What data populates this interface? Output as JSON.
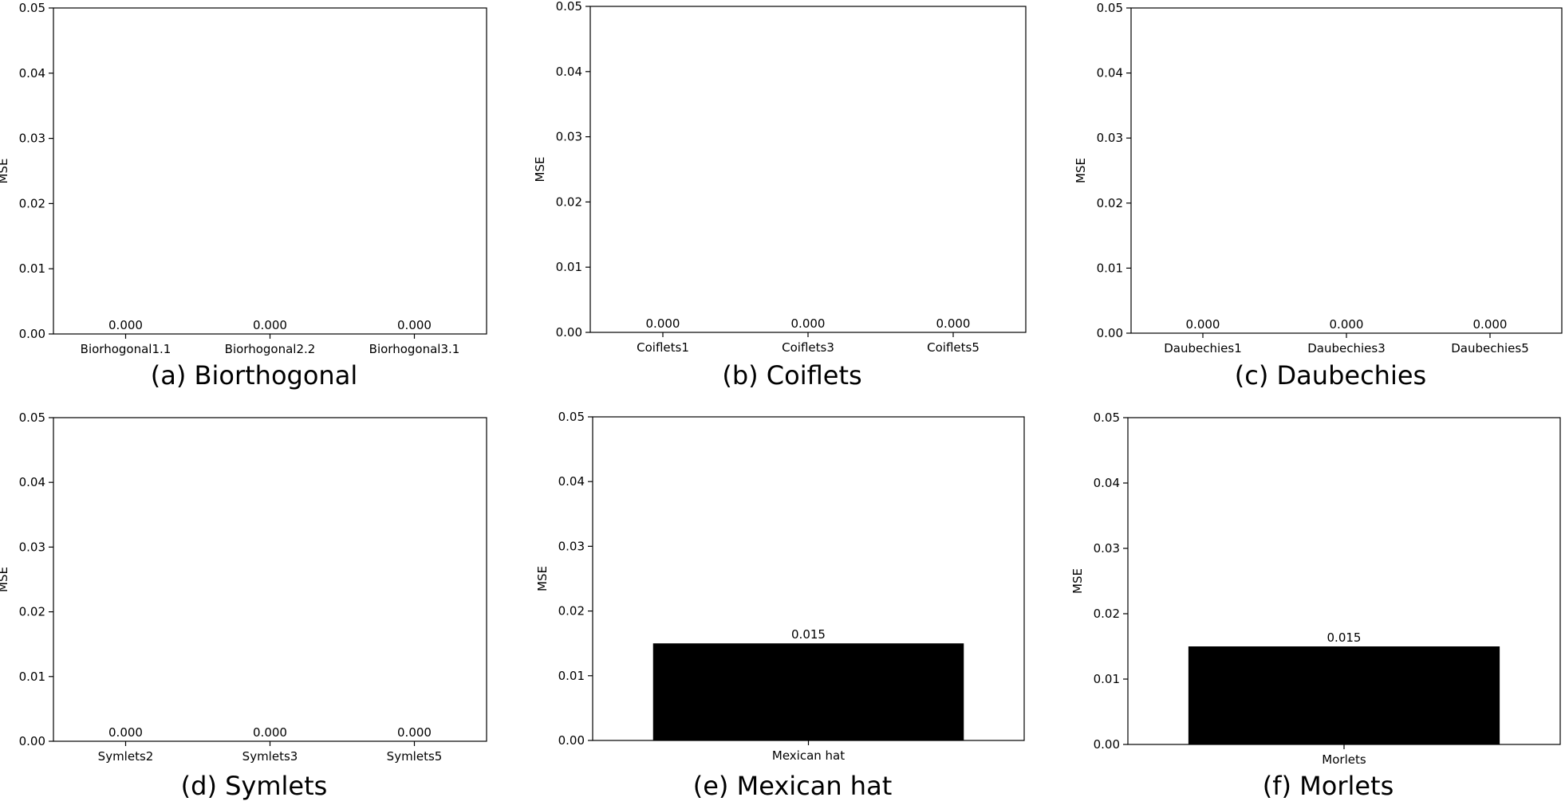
{
  "chart_data": [
    {
      "type": "bar",
      "categories": [
        "Biorhogonal1.1",
        "Biorhogonal2.2",
        "Biorhogonal3.1"
      ],
      "values": [
        0.0,
        0.0,
        0.0
      ],
      "data_labels": [
        "0.000",
        "0.000",
        "0.000"
      ],
      "ylabel": "MSE",
      "xlabel": "",
      "ylim": [
        0,
        0.05
      ],
      "yticks": [
        "0.00",
        "0.01",
        "0.02",
        "0.03",
        "0.04",
        "0.05"
      ],
      "caption": "(a) Biorthogonal",
      "bar_color": "#000000",
      "grid": false
    },
    {
      "type": "bar",
      "categories": [
        "Coiflets1",
        "Coiflets3",
        "Coiflets5"
      ],
      "values": [
        0.0,
        0.0,
        0.0
      ],
      "data_labels": [
        "0.000",
        "0.000",
        "0.000"
      ],
      "ylabel": "MSE",
      "xlabel": "",
      "ylim": [
        0,
        0.05
      ],
      "yticks": [
        "0.00",
        "0.01",
        "0.02",
        "0.03",
        "0.04",
        "0.05"
      ],
      "caption": "(b) Coiflets",
      "bar_color": "#000000",
      "grid": false
    },
    {
      "type": "bar",
      "categories": [
        "Daubechies1",
        "Daubechies3",
        "Daubechies5"
      ],
      "values": [
        0.0,
        0.0,
        0.0
      ],
      "data_labels": [
        "0.000",
        "0.000",
        "0.000"
      ],
      "ylabel": "MSE",
      "xlabel": "",
      "ylim": [
        0,
        0.05
      ],
      "yticks": [
        "0.00",
        "0.01",
        "0.02",
        "0.03",
        "0.04",
        "0.05"
      ],
      "caption": "(c) Daubechies",
      "bar_color": "#000000",
      "grid": false
    },
    {
      "type": "bar",
      "categories": [
        "Symlets2",
        "Symlets3",
        "Symlets5"
      ],
      "values": [
        0.0,
        0.0,
        0.0
      ],
      "data_labels": [
        "0.000",
        "0.000",
        "0.000"
      ],
      "ylabel": "MSE",
      "xlabel": "",
      "ylim": [
        0,
        0.05
      ],
      "yticks": [
        "0.00",
        "0.01",
        "0.02",
        "0.03",
        "0.04",
        "0.05"
      ],
      "caption": "(d) Symlets",
      "bar_color": "#000000",
      "grid": false
    },
    {
      "type": "bar",
      "categories": [
        "Mexican hat"
      ],
      "values": [
        0.015
      ],
      "data_labels": [
        "0.015"
      ],
      "ylabel": "MSE",
      "xlabel": "",
      "ylim": [
        0,
        0.05
      ],
      "yticks": [
        "0.00",
        "0.01",
        "0.02",
        "0.03",
        "0.04",
        "0.05"
      ],
      "caption": "(e) Mexican hat",
      "bar_color": "#000000",
      "grid": false
    },
    {
      "type": "bar",
      "categories": [
        "Morlets"
      ],
      "values": [
        0.015
      ],
      "data_labels": [
        "0.015"
      ],
      "ylabel": "MSE",
      "xlabel": "",
      "ylim": [
        0,
        0.05
      ],
      "yticks": [
        "0.00",
        "0.01",
        "0.02",
        "0.03",
        "0.04",
        "0.05"
      ],
      "caption": "(f) Morlets",
      "bar_color": "#000000",
      "grid": false
    }
  ]
}
